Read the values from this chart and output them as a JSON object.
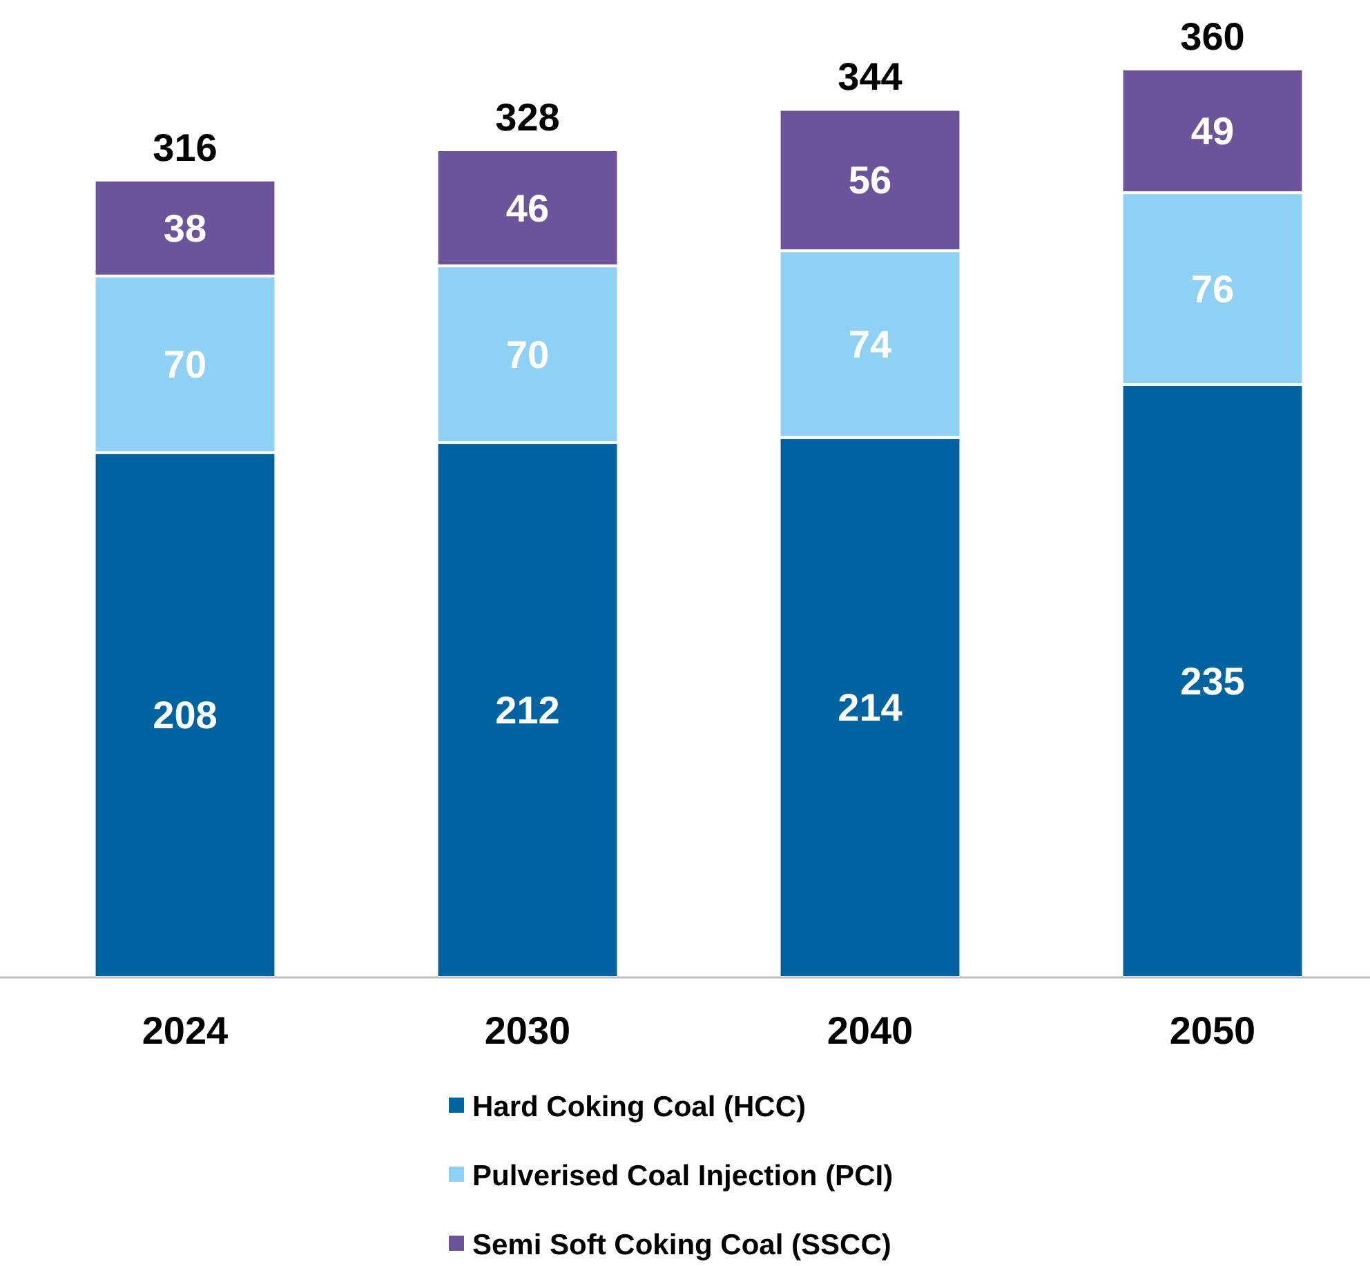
{
  "chart_data": {
    "type": "bar",
    "stacked": true,
    "categories": [
      "2024",
      "2030",
      "2040",
      "2050"
    ],
    "series": [
      {
        "name": "Hard Coking Coal (HCC)",
        "color": "#0063a1",
        "values": [
          208,
          212,
          214,
          235
        ]
      },
      {
        "name": "Pulverised Coal Injection (PCI)",
        "color": "#8fd0f5",
        "values": [
          70,
          70,
          74,
          76
        ]
      },
      {
        "name": "Semi Soft Coking Coal (SSCC)",
        "color": "#6b5499",
        "values": [
          38,
          46,
          56,
          49
        ]
      }
    ],
    "data_labels": true,
    "totals": [
      "316",
      "328",
      "344",
      "360"
    ],
    "legend": "bottom"
  }
}
